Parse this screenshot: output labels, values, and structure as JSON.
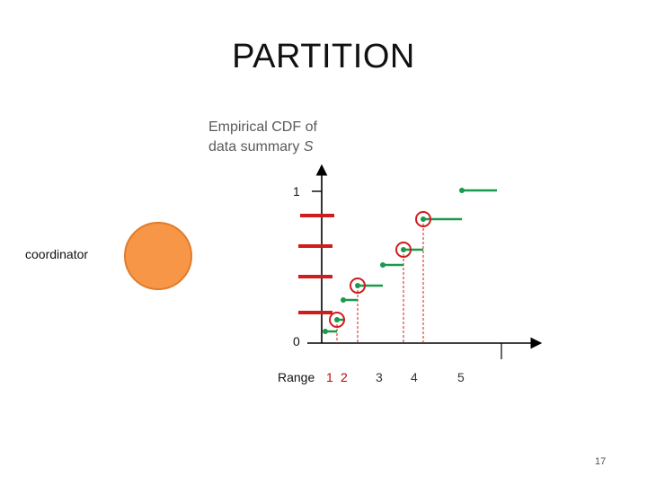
{
  "slide": {
    "title": "PARTITION",
    "cdf_label_line1": "Empirical CDF of",
    "cdf_label_line2": "data summary ",
    "cdf_label_var": "S",
    "coordinator_label": "coordinator",
    "y_tick_top": "1",
    "y_tick_bottom": "0",
    "range_label": "Range",
    "range_numbers": [
      "1",
      "2",
      "3",
      "4",
      "5"
    ],
    "range_number_colors": [
      "#c00000",
      "#c00000",
      "#333333",
      "#333333",
      "#333333"
    ],
    "page_number": "17"
  },
  "colors": {
    "step": "#1a9a4a",
    "highlight": "#d01c1c",
    "marker": "#d01c1c",
    "coordinator_fill": "#f79646",
    "axis": "#000000"
  }
}
